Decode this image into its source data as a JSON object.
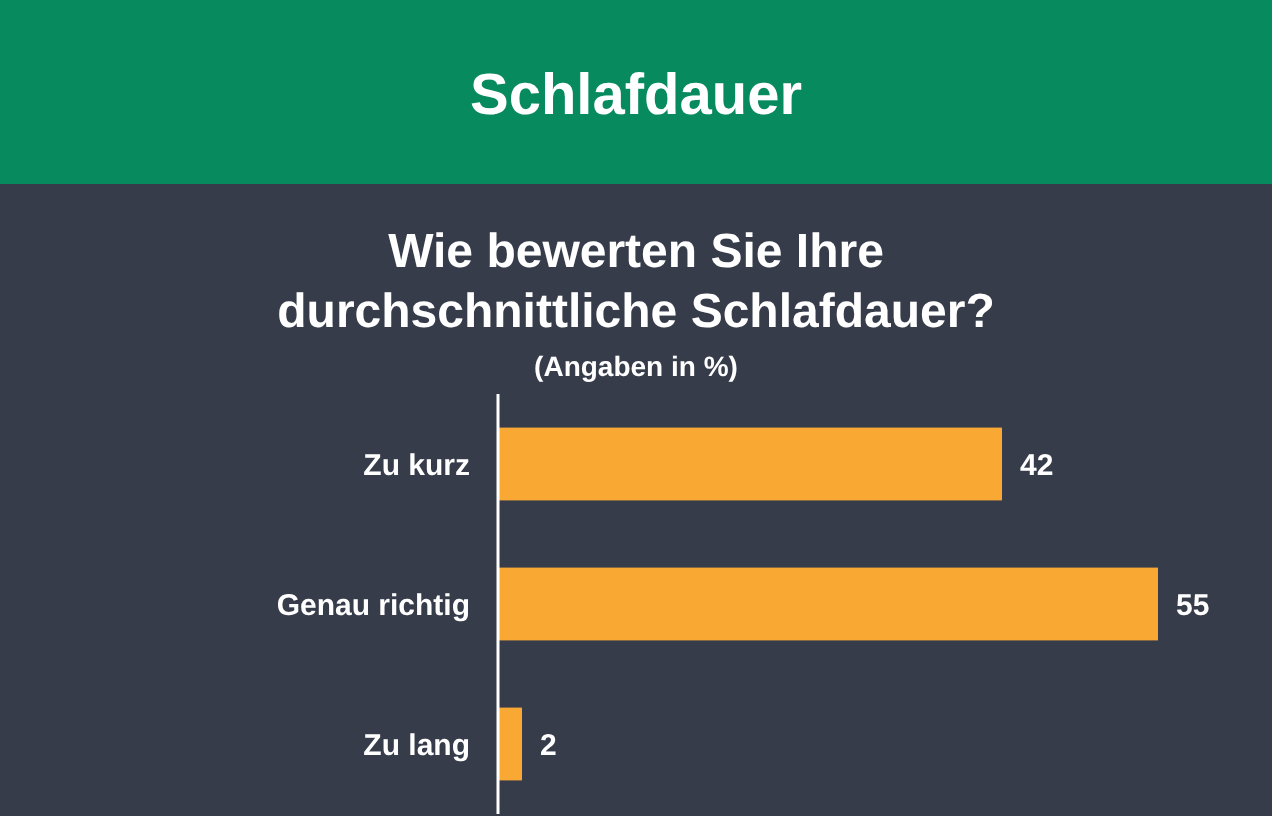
{
  "chart_data": {
    "type": "bar",
    "orientation": "horizontal",
    "title": "Schlafdauer",
    "subtitle": "Wie bewerten Sie Ihre durchschnittliche Schlafdauer?",
    "annotations": [
      "(Angaben in %)"
    ],
    "categories": [
      "Zu kurz",
      "Genau richtig",
      "Zu lang"
    ],
    "values": [
      42,
      55,
      2
    ],
    "color": "#f9a833",
    "data_labels": true
  }
}
